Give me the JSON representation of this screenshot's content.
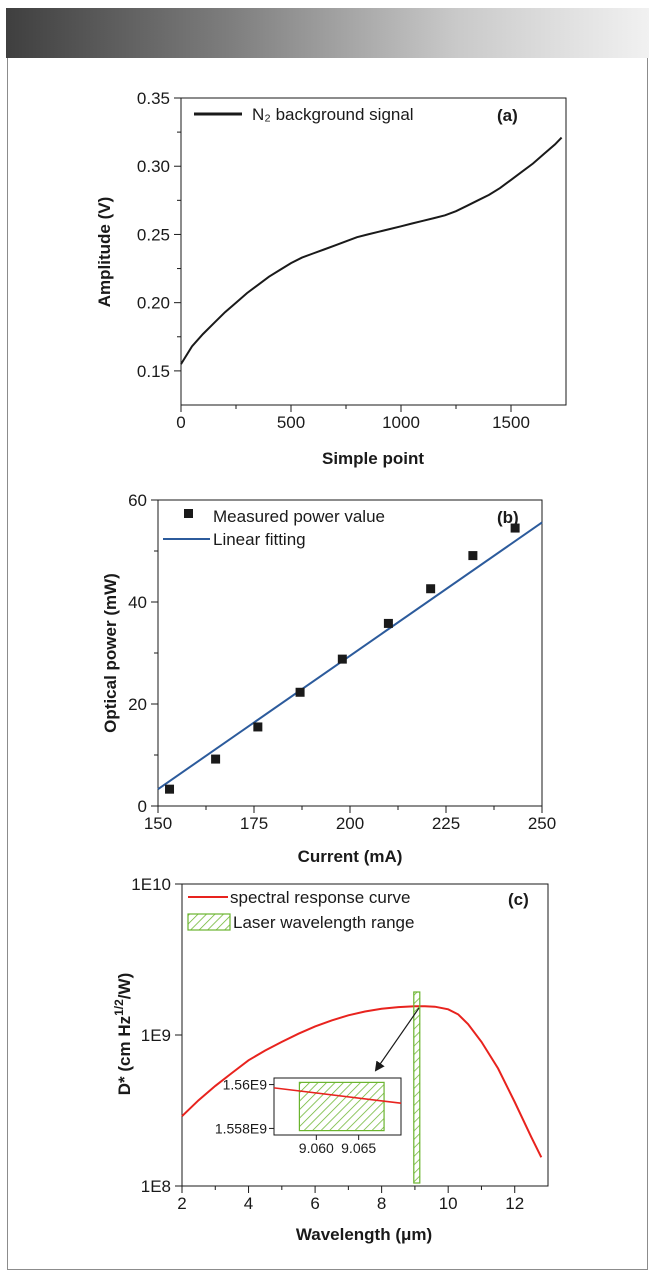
{
  "chart_data": [
    {
      "type": "line",
      "panel_label": "(a)",
      "xlabel": "Simple point",
      "ylabel": "Amplitude (V)",
      "xlim": [
        0,
        1750
      ],
      "ylim": [
        0.125,
        0.35
      ],
      "xticks": [
        0,
        500,
        1000,
        1500
      ],
      "xtick_labels": [
        "0",
        "500",
        "1000",
        "1500"
      ],
      "yticks": [
        0.15,
        0.2,
        0.25,
        0.3,
        0.35
      ],
      "ytick_labels": [
        "0.15",
        "0.20",
        "0.25",
        "0.30",
        "0.35"
      ],
      "legend": "top-left",
      "series": [
        {
          "name": "N₂ background signal",
          "x": [
            0,
            50,
            100,
            150,
            200,
            250,
            300,
            350,
            400,
            450,
            500,
            550,
            600,
            650,
            700,
            750,
            800,
            850,
            900,
            950,
            1000,
            1050,
            1100,
            1150,
            1200,
            1250,
            1300,
            1350,
            1400,
            1450,
            1500,
            1550,
            1600,
            1650,
            1700,
            1730
          ],
          "y": [
            0.155,
            0.168,
            0.177,
            0.185,
            0.193,
            0.2,
            0.207,
            0.213,
            0.219,
            0.224,
            0.229,
            0.233,
            0.236,
            0.239,
            0.242,
            0.245,
            0.248,
            0.25,
            0.252,
            0.254,
            0.256,
            0.258,
            0.26,
            0.262,
            0.264,
            0.267,
            0.271,
            0.275,
            0.279,
            0.284,
            0.29,
            0.296,
            0.302,
            0.309,
            0.316,
            0.321
          ]
        }
      ]
    },
    {
      "type": "scatter",
      "panel_label": "(b)",
      "xlabel": "Current (mA)",
      "ylabel": "Optical power (mW)",
      "xlim": [
        150,
        250
      ],
      "ylim": [
        0,
        60
      ],
      "xticks": [
        150,
        175,
        200,
        225,
        250
      ],
      "xtick_labels": [
        "150",
        "175",
        "200",
        "225",
        "250"
      ],
      "yticks": [
        0,
        20,
        40,
        60
      ],
      "ytick_labels": [
        "0",
        "20",
        "40",
        "60"
      ],
      "legend": "top-left",
      "series": [
        {
          "name": "Measured power value",
          "x": [
            153,
            165,
            176,
            187,
            198,
            210,
            221,
            232,
            243
          ],
          "y": [
            3.3,
            9.2,
            15.5,
            22.3,
            28.8,
            35.8,
            42.6,
            49.1,
            54.5
          ]
        },
        {
          "name": "Linear fitting",
          "x": [
            150,
            250
          ],
          "y": [
            3.3,
            55.6
          ]
        }
      ]
    },
    {
      "type": "line",
      "panel_label": "(c)",
      "xlabel": "Wavelength (μm)",
      "ylabel": "D* (cm Hz¹ᐟ²/W)",
      "ylabel_main": "D* (cm Hz",
      "ylabel_sup": "1/2",
      "ylabel_end": "/W)",
      "yscale": "log",
      "xlim": [
        2,
        13
      ],
      "ylim": [
        100000000.0,
        10000000000.0
      ],
      "xticks": [
        2,
        4,
        6,
        8,
        10,
        12
      ],
      "xtick_labels": [
        "2",
        "4",
        "6",
        "8",
        "10",
        "12"
      ],
      "yticks": [
        100000000.0,
        1000000000.0,
        10000000000.0
      ],
      "ytick_labels": [
        "1E8",
        "1E9",
        "1E10"
      ],
      "legend": "top-left",
      "series": [
        {
          "name": "spectral response curve",
          "x": [
            2,
            2.5,
            3,
            3.5,
            4,
            4.5,
            5,
            5.5,
            6,
            6.5,
            7,
            7.5,
            8,
            8.5,
            9,
            9.3,
            9.6,
            10,
            10.3,
            10.6,
            11,
            11.5,
            12,
            12.5,
            12.8
          ],
          "y": [
            290000000.0,
            370000000.0,
            460000000.0,
            560000000.0,
            680000000.0,
            790000000.0,
            900000000.0,
            1020000000.0,
            1140000000.0,
            1250000000.0,
            1350000000.0,
            1430000000.0,
            1490000000.0,
            1530000000.0,
            1550000000.0,
            1550000000.0,
            1540000000.0,
            1480000000.0,
            1370000000.0,
            1180000000.0,
            900000000.0,
            600000000.0,
            360000000.0,
            210000000.0,
            155000000.0
          ]
        },
        {
          "name": "Laser wavelength range",
          "x_range": [
            9.058,
            9.068
          ]
        }
      ],
      "inset": {
        "xlim": [
          9.055,
          9.07
        ],
        "ylim": [
          1557700000.0,
          1560300000.0
        ],
        "xticks": [
          9.06,
          9.065
        ],
        "xtick_labels": [
          "9.060",
          "9.065"
        ],
        "yticks": [
          1560000000.0,
          1558000000.0
        ],
        "ytick_labels": [
          "1.56E9",
          "1.558E9"
        ],
        "band_x": [
          9.058,
          9.068
        ],
        "band_y": [
          1557900000.0,
          1560100000.0
        ],
        "line": {
          "x": [
            9.055,
            9.07
          ],
          "y": [
            1559850000.0,
            1559150000.0
          ]
        }
      },
      "colors": {
        "curve": "#e8231e",
        "band": "#6ab42e"
      }
    }
  ],
  "colors": {
    "scatter": "#1a1a1a",
    "fit": "#2c5b9c",
    "line_a": "#1a1a1a"
  }
}
